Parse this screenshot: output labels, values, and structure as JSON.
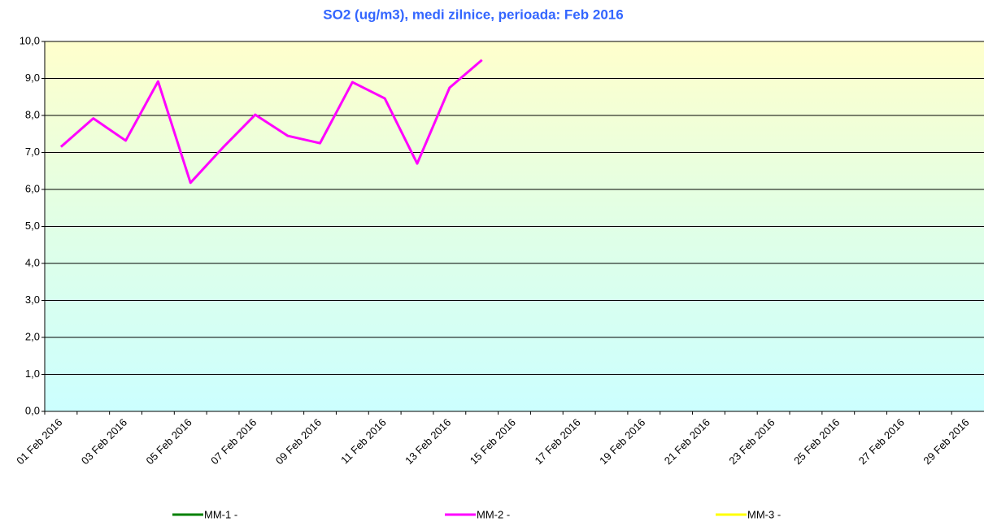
{
  "chart_data": {
    "type": "line",
    "title": "SO2 (ug/m3), medi zilnice, perioada:  Feb 2016",
    "x": [
      "01 Feb 2016",
      null,
      "03 Feb 2016",
      null,
      "05 Feb 2016",
      null,
      "07 Feb 2016",
      null,
      "09 Feb 2016",
      null,
      "11 Feb 2016",
      null,
      "13 Feb 2016",
      null,
      "15 Feb 2016",
      null,
      "17 Feb 2016",
      null,
      "19 Feb 2016",
      null,
      "21 Feb 2016",
      null,
      "23 Feb 2016",
      null,
      "25 Feb 2016",
      null,
      "27 Feb 2016",
      null,
      "29 Feb 2016"
    ],
    "series": [
      {
        "name": "MM-1 -",
        "color": "#008000",
        "values": [
          null,
          null,
          null,
          null,
          null,
          null,
          null,
          null,
          null,
          null,
          null,
          null,
          null,
          null,
          null,
          null,
          null,
          null,
          null,
          null,
          null,
          null,
          null,
          null,
          null,
          null,
          null,
          null,
          null
        ]
      },
      {
        "name": "MM-2 -",
        "color": "#ff00ff",
        "values": [
          7.15,
          7.92,
          7.32,
          8.92,
          6.18,
          7.13,
          8.02,
          7.45,
          7.25,
          8.9,
          8.46,
          6.7,
          8.75,
          9.5,
          null,
          null,
          null,
          null,
          null,
          null,
          null,
          null,
          null,
          null,
          null,
          null,
          null,
          null,
          null
        ]
      },
      {
        "name": "MM-3 -",
        "color": "#ffff00",
        "values": [
          null,
          null,
          null,
          null,
          null,
          null,
          null,
          null,
          null,
          null,
          null,
          null,
          null,
          null,
          null,
          null,
          null,
          null,
          null,
          null,
          null,
          null,
          null,
          null,
          null,
          null,
          null,
          null,
          null
        ]
      }
    ],
    "ylim": [
      0,
      10
    ],
    "yticks": [
      {
        "value": 0,
        "label": "0,0"
      },
      {
        "value": 1,
        "label": "1,0"
      },
      {
        "value": 2,
        "label": "2,0"
      },
      {
        "value": 3,
        "label": "3,0"
      },
      {
        "value": 4,
        "label": "4,0"
      },
      {
        "value": 5,
        "label": "5,0"
      },
      {
        "value": 6,
        "label": "6,0"
      },
      {
        "value": 7,
        "label": "7,0"
      },
      {
        "value": 8,
        "label": "8,0"
      },
      {
        "value": 9,
        "label": "9,0"
      },
      {
        "value": 10,
        "label": "10,0"
      }
    ],
    "grid": true
  }
}
